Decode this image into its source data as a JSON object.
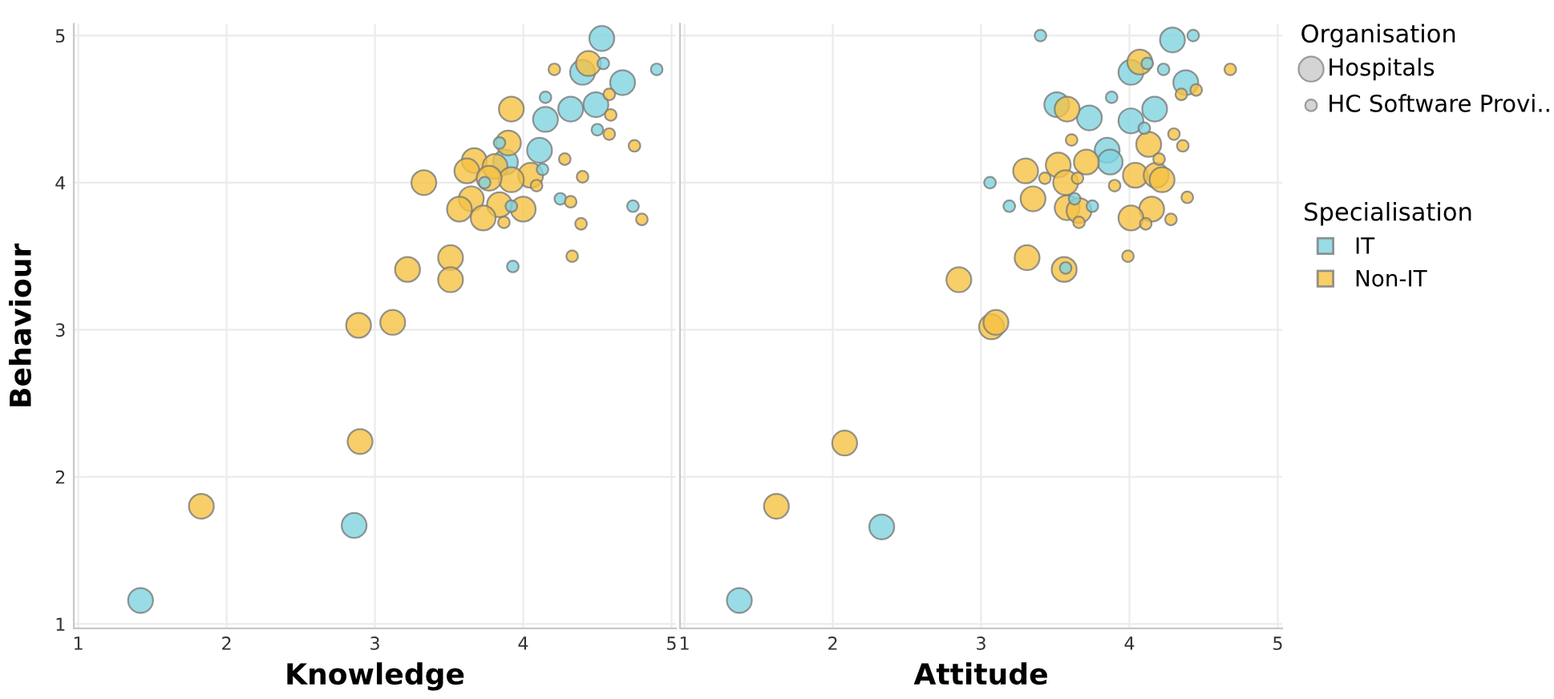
{
  "chart_data": [
    {
      "type": "bubble",
      "xlabel": "Knowledge",
      "ylabel": "Behaviour",
      "xlim": [
        0.97,
        5.03
      ],
      "ylim": [
        0.97,
        5.08
      ],
      "xticks": [
        1,
        2,
        3,
        4,
        5
      ],
      "yticks": [
        1,
        2,
        3,
        4,
        5
      ],
      "grid": true,
      "legend": false,
      "series": [
        {
          "color": "#7fd3de",
          "x": [
            1.42,
            2.86,
            4.53,
            4.4,
            4.67,
            4.32,
            4.49,
            4.15,
            4.11,
            3.88,
            4.54,
            4.9,
            4.15,
            4.5,
            3.84,
            4.13,
            3.74,
            3.92,
            4.25,
            4.74,
            3.93
          ],
          "values": [
            1.16,
            1.67,
            4.98,
            4.75,
            4.68,
            4.5,
            4.53,
            4.43,
            4.22,
            4.14,
            4.81,
            4.77,
            4.58,
            4.36,
            4.27,
            4.09,
            4.0,
            3.84,
            3.89,
            3.84,
            3.43
          ],
          "sizes": [
            1,
            1,
            1,
            1,
            1,
            1,
            1,
            1,
            1,
            1,
            0.22,
            0.22,
            0.22,
            0.22,
            0.22,
            0.22,
            0.22,
            0.22,
            0.22,
            0.22,
            0.22
          ]
        },
        {
          "color": "#f5c242",
          "x": [
            1.83,
            2.9,
            2.89,
            3.12,
            4.44,
            3.92,
            3.9,
            3.67,
            3.62,
            3.81,
            4.05,
            3.92,
            3.77,
            3.33,
            3.65,
            3.57,
            3.84,
            4.0,
            3.73,
            3.51,
            3.22,
            3.51,
            4.21,
            4.58,
            4.59,
            4.58,
            4.75,
            4.28,
            4.4,
            4.09,
            4.32,
            4.8,
            4.39,
            3.87,
            4.33
          ],
          "values": [
            1.8,
            2.24,
            3.03,
            3.05,
            4.81,
            4.5,
            4.27,
            4.15,
            4.08,
            4.11,
            4.05,
            4.02,
            4.03,
            4.0,
            3.89,
            3.82,
            3.85,
            3.82,
            3.76,
            3.49,
            3.41,
            3.34,
            4.77,
            4.6,
            4.46,
            4.33,
            4.25,
            4.16,
            4.04,
            3.98,
            3.87,
            3.75,
            3.72,
            3.73,
            3.5
          ],
          "sizes": [
            1,
            1,
            1,
            1,
            1,
            1,
            1,
            1,
            1,
            1,
            1,
            1,
            1,
            1,
            1,
            1,
            1,
            1,
            1,
            1,
            1,
            1,
            0.22,
            0.22,
            0.22,
            0.22,
            0.22,
            0.22,
            0.22,
            0.22,
            0.22,
            0.22,
            0.22,
            0.22,
            0.22
          ]
        }
      ]
    },
    {
      "type": "bubble",
      "xlabel": "Attitude",
      "xlim": [
        0.97,
        5.03
      ],
      "ylim": [
        0.97,
        5.08
      ],
      "xticks": [
        1,
        2,
        3,
        4,
        5
      ],
      "yticks": [
        1,
        2,
        3,
        4,
        5
      ],
      "tick_labels": "x",
      "grid": true,
      "legend": "right",
      "legend_title": "Specialisation",
      "annotations": [
        "Organisation",
        "Hospitals",
        "HC Software Provi.."
      ],
      "series": [
        {
          "name": "IT",
          "color": "#7fd3de",
          "x": [
            1.37,
            2.33,
            4.29,
            4.01,
            4.38,
            3.51,
            3.73,
            4.01,
            4.17,
            3.85,
            3.87,
            3.4,
            4.43,
            4.12,
            4.23,
            3.88,
            4.1,
            3.06,
            3.19,
            3.63,
            3.75,
            3.57
          ],
          "values": [
            1.16,
            1.66,
            4.97,
            4.75,
            4.68,
            4.53,
            4.44,
            4.42,
            4.5,
            4.22,
            4.14,
            5.0,
            5.0,
            4.81,
            4.77,
            4.58,
            4.37,
            4.0,
            3.84,
            3.89,
            3.84,
            3.42
          ],
          "sizes": [
            1,
            1,
            1,
            1,
            1,
            1,
            1,
            1,
            1,
            1,
            1,
            0.22,
            0.22,
            0.22,
            0.22,
            0.22,
            0.22,
            0.22,
            0.22,
            0.22,
            0.22,
            0.22
          ]
        },
        {
          "name": "Non-IT",
          "color": "#f5c242",
          "x": [
            1.62,
            2.08,
            3.07,
            3.1,
            2.85,
            4.07,
            3.58,
            4.13,
            3.71,
            3.52,
            3.3,
            4.04,
            4.18,
            4.22,
            3.57,
            3.35,
            3.58,
            3.66,
            4.15,
            4.01,
            3.31,
            3.56,
            4.68,
            4.35,
            4.45,
            4.3,
            4.36,
            3.61,
            4.2,
            3.43,
            3.65,
            3.9,
            4.39,
            4.28,
            4.11,
            3.66,
            3.99
          ],
          "values": [
            1.8,
            2.23,
            3.02,
            3.05,
            3.34,
            4.82,
            4.5,
            4.26,
            4.14,
            4.12,
            4.08,
            4.05,
            4.05,
            4.02,
            4.0,
            3.89,
            3.83,
            3.81,
            3.82,
            3.76,
            3.49,
            3.41,
            4.77,
            4.6,
            4.63,
            4.33,
            4.25,
            4.29,
            4.16,
            4.03,
            4.03,
            3.98,
            3.9,
            3.75,
            3.72,
            3.73,
            3.5
          ],
          "sizes": [
            1,
            1,
            1,
            1,
            1,
            1,
            1,
            1,
            1,
            1,
            1,
            1,
            1,
            1,
            1,
            1,
            1,
            1,
            1,
            1,
            1,
            1,
            0.22,
            0.22,
            0.22,
            0.22,
            0.22,
            0.22,
            0.22,
            0.22,
            0.22,
            0.22,
            0.22,
            0.22,
            0.22,
            0.22,
            0.22
          ]
        }
      ]
    }
  ]
}
